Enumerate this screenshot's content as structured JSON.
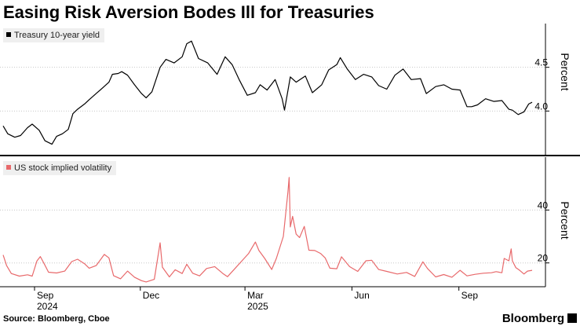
{
  "title": "Easing Risk Aversion Bodes Ill for Treasuries",
  "source": "Source: Bloomberg, Cboe",
  "brand": "Bloomberg",
  "colors": {
    "yield": "#000000",
    "vol": "#e8696b",
    "grid": "#c8c8c8"
  },
  "chart_data": [
    {
      "type": "line",
      "title": "",
      "series": [
        {
          "name": "Treasury 10-year yield",
          "color": "#000000",
          "points": [
            [
              "2024-08-05",
              3.83
            ],
            [
              "2024-08-09",
              3.74
            ],
            [
              "2024-08-15",
              3.7
            ],
            [
              "2024-08-20",
              3.72
            ],
            [
              "2024-08-26",
              3.81
            ],
            [
              "2024-08-30",
              3.85
            ],
            [
              "2024-09-05",
              3.78
            ],
            [
              "2024-09-10",
              3.66
            ],
            [
              "2024-09-16",
              3.62
            ],
            [
              "2024-09-20",
              3.71
            ],
            [
              "2024-09-25",
              3.74
            ],
            [
              "2024-09-30",
              3.79
            ],
            [
              "2024-10-04",
              3.97
            ],
            [
              "2024-10-08",
              4.02
            ],
            [
              "2024-10-14",
              4.08
            ],
            [
              "2024-10-18",
              4.13
            ],
            [
              "2024-10-24",
              4.2
            ],
            [
              "2024-10-30",
              4.27
            ],
            [
              "2024-11-04",
              4.33
            ],
            [
              "2024-11-07",
              4.42
            ],
            [
              "2024-11-12",
              4.43
            ],
            [
              "2024-11-15",
              4.45
            ],
            [
              "2024-11-20",
              4.41
            ],
            [
              "2024-11-26",
              4.3
            ],
            [
              "2024-12-02",
              4.2
            ],
            [
              "2024-12-06",
              4.15
            ],
            [
              "2024-12-11",
              4.22
            ],
            [
              "2024-12-18",
              4.5
            ],
            [
              "2024-12-23",
              4.59
            ],
            [
              "2024-12-30",
              4.55
            ],
            [
              "2025-01-06",
              4.62
            ],
            [
              "2025-01-10",
              4.77
            ],
            [
              "2025-01-14",
              4.8
            ],
            [
              "2025-01-20",
              4.6
            ],
            [
              "2025-01-28",
              4.55
            ],
            [
              "2025-02-05",
              4.42
            ],
            [
              "2025-02-12",
              4.62
            ],
            [
              "2025-02-18",
              4.53
            ],
            [
              "2025-02-24",
              4.36
            ],
            [
              "2025-03-03",
              4.18
            ],
            [
              "2025-03-10",
              4.21
            ],
            [
              "2025-03-14",
              4.3
            ],
            [
              "2025-03-20",
              4.24
            ],
            [
              "2025-03-27",
              4.36
            ],
            [
              "2025-04-02",
              4.14
            ],
            [
              "2025-04-04",
              4.01
            ],
            [
              "2025-04-09",
              4.39
            ],
            [
              "2025-04-14",
              4.33
            ],
            [
              "2025-04-22",
              4.4
            ],
            [
              "2025-04-28",
              4.21
            ],
            [
              "2025-05-06",
              4.3
            ],
            [
              "2025-05-12",
              4.47
            ],
            [
              "2025-05-19",
              4.53
            ],
            [
              "2025-05-22",
              4.61
            ],
            [
              "2025-05-28",
              4.48
            ],
            [
              "2025-06-04",
              4.36
            ],
            [
              "2025-06-11",
              4.42
            ],
            [
              "2025-06-18",
              4.39
            ],
            [
              "2025-06-24",
              4.29
            ],
            [
              "2025-07-01",
              4.25
            ],
            [
              "2025-07-08",
              4.41
            ],
            [
              "2025-07-15",
              4.48
            ],
            [
              "2025-07-22",
              4.36
            ],
            [
              "2025-07-30",
              4.37
            ],
            [
              "2025-08-04",
              4.2
            ],
            [
              "2025-08-12",
              4.28
            ],
            [
              "2025-08-19",
              4.3
            ],
            [
              "2025-08-26",
              4.25
            ],
            [
              "2025-09-02",
              4.24
            ],
            [
              "2025-09-08",
              4.05
            ],
            [
              "2025-09-12",
              4.05
            ],
            [
              "2025-09-17",
              4.07
            ],
            [
              "2025-09-24",
              4.14
            ],
            [
              "2025-10-01",
              4.11
            ],
            [
              "2025-10-08",
              4.12
            ],
            [
              "2025-10-14",
              4.02
            ],
            [
              "2025-10-17",
              4.01
            ],
            [
              "2025-10-22",
              3.96
            ],
            [
              "2025-10-27",
              3.99
            ],
            [
              "2025-10-31",
              4.08
            ],
            [
              "2025-11-03",
              4.1
            ]
          ]
        }
      ],
      "ylabel": "Percent",
      "yticks": [
        4.0,
        4.5
      ],
      "ylim": [
        3.5,
        5.0
      ],
      "grid": true,
      "legend": "top-left"
    },
    {
      "type": "line",
      "title": "",
      "series": [
        {
          "name": "US stock implied volatility",
          "color": "#e8696b",
          "points": [
            [
              "2024-08-05",
              23.0
            ],
            [
              "2024-08-08",
              19.0
            ],
            [
              "2024-08-12",
              16.0
            ],
            [
              "2024-08-19",
              15.0
            ],
            [
              "2024-08-26",
              15.5
            ],
            [
              "2024-08-30",
              15.0
            ],
            [
              "2024-09-03",
              20.7
            ],
            [
              "2024-09-06",
              22.4
            ],
            [
              "2024-09-10",
              19.1
            ],
            [
              "2024-09-13",
              16.5
            ],
            [
              "2024-09-20",
              16.2
            ],
            [
              "2024-09-27",
              16.9
            ],
            [
              "2024-10-03",
              20.5
            ],
            [
              "2024-10-08",
              21.4
            ],
            [
              "2024-10-14",
              19.7
            ],
            [
              "2024-10-18",
              18.0
            ],
            [
              "2024-10-24",
              19.0
            ],
            [
              "2024-10-31",
              23.2
            ],
            [
              "2024-11-04",
              21.9
            ],
            [
              "2024-11-08",
              15.2
            ],
            [
              "2024-11-14",
              14.0
            ],
            [
              "2024-11-20",
              16.9
            ],
            [
              "2024-11-26",
              14.6
            ],
            [
              "2024-12-02",
              13.3
            ],
            [
              "2024-12-06",
              12.8
            ],
            [
              "2024-12-13",
              13.8
            ],
            [
              "2024-12-18",
              27.6
            ],
            [
              "2024-12-20",
              18.4
            ],
            [
              "2024-12-26",
              14.7
            ],
            [
              "2024-12-31",
              17.4
            ],
            [
              "2025-01-06",
              16.0
            ],
            [
              "2025-01-10",
              19.5
            ],
            [
              "2025-01-15",
              16.1
            ],
            [
              "2025-01-21",
              15.1
            ],
            [
              "2025-01-27",
              17.9
            ],
            [
              "2025-02-03",
              18.6
            ],
            [
              "2025-02-10",
              16.0
            ],
            [
              "2025-02-14",
              14.8
            ],
            [
              "2025-02-21",
              18.2
            ],
            [
              "2025-02-27",
              21.1
            ],
            [
              "2025-03-04",
              23.5
            ],
            [
              "2025-03-10",
              27.9
            ],
            [
              "2025-03-13",
              24.7
            ],
            [
              "2025-03-18",
              21.7
            ],
            [
              "2025-03-24",
              17.5
            ],
            [
              "2025-03-28",
              21.7
            ],
            [
              "2025-04-03",
              30.0
            ],
            [
              "2025-04-07",
              46.9
            ],
            [
              "2025-04-08",
              52.3
            ],
            [
              "2025-04-09",
              33.6
            ],
            [
              "2025-04-11",
              37.6
            ],
            [
              "2025-04-14",
              30.9
            ],
            [
              "2025-04-17",
              29.6
            ],
            [
              "2025-04-21",
              33.8
            ],
            [
              "2025-04-25",
              24.8
            ],
            [
              "2025-04-30",
              24.7
            ],
            [
              "2025-05-05",
              23.6
            ],
            [
              "2025-05-09",
              21.9
            ],
            [
              "2025-05-13",
              18.0
            ],
            [
              "2025-05-19",
              17.8
            ],
            [
              "2025-05-23",
              22.3
            ],
            [
              "2025-05-30",
              18.6
            ],
            [
              "2025-06-06",
              16.8
            ],
            [
              "2025-06-13",
              20.8
            ],
            [
              "2025-06-18",
              21.0
            ],
            [
              "2025-06-24",
              17.5
            ],
            [
              "2025-07-01",
              16.8
            ],
            [
              "2025-07-10",
              15.8
            ],
            [
              "2025-07-18",
              16.4
            ],
            [
              "2025-07-25",
              14.9
            ],
            [
              "2025-08-01",
              20.4
            ],
            [
              "2025-08-05",
              17.9
            ],
            [
              "2025-08-12",
              14.7
            ],
            [
              "2025-08-19",
              15.6
            ],
            [
              "2025-08-26",
              14.6
            ],
            [
              "2025-09-02",
              17.2
            ],
            [
              "2025-09-08",
              15.1
            ],
            [
              "2025-09-15",
              15.7
            ],
            [
              "2025-09-22",
              16.1
            ],
            [
              "2025-09-29",
              16.3
            ],
            [
              "2025-10-03",
              16.7
            ],
            [
              "2025-10-08",
              16.3
            ],
            [
              "2025-10-10",
              21.7
            ],
            [
              "2025-10-14",
              20.8
            ],
            [
              "2025-10-16",
              25.3
            ],
            [
              "2025-10-17",
              20.8
            ],
            [
              "2025-10-20",
              18.2
            ],
            [
              "2025-10-23",
              17.3
            ],
            [
              "2025-10-27",
              15.8
            ],
            [
              "2025-10-30",
              16.9
            ],
            [
              "2025-11-03",
              17.2
            ]
          ]
        }
      ],
      "ylabel": "Percent",
      "yticks": [
        20,
        40
      ],
      "ylim": [
        11,
        60
      ],
      "grid": true,
      "legend": "top-left"
    }
  ],
  "x_axis": {
    "ticks": [
      {
        "date": "2024-09-01",
        "label": "Sep"
      },
      {
        "date": "2024-12-01",
        "label": "Dec"
      },
      {
        "date": "2025-03-01",
        "label": "Mar"
      },
      {
        "date": "2025-06-01",
        "label": "Jun"
      },
      {
        "date": "2025-09-01",
        "label": "Sep"
      }
    ],
    "years": [
      {
        "date": "2024-09-01",
        "label": "2024"
      },
      {
        "date": "2025-03-01",
        "label": "2025"
      }
    ]
  }
}
